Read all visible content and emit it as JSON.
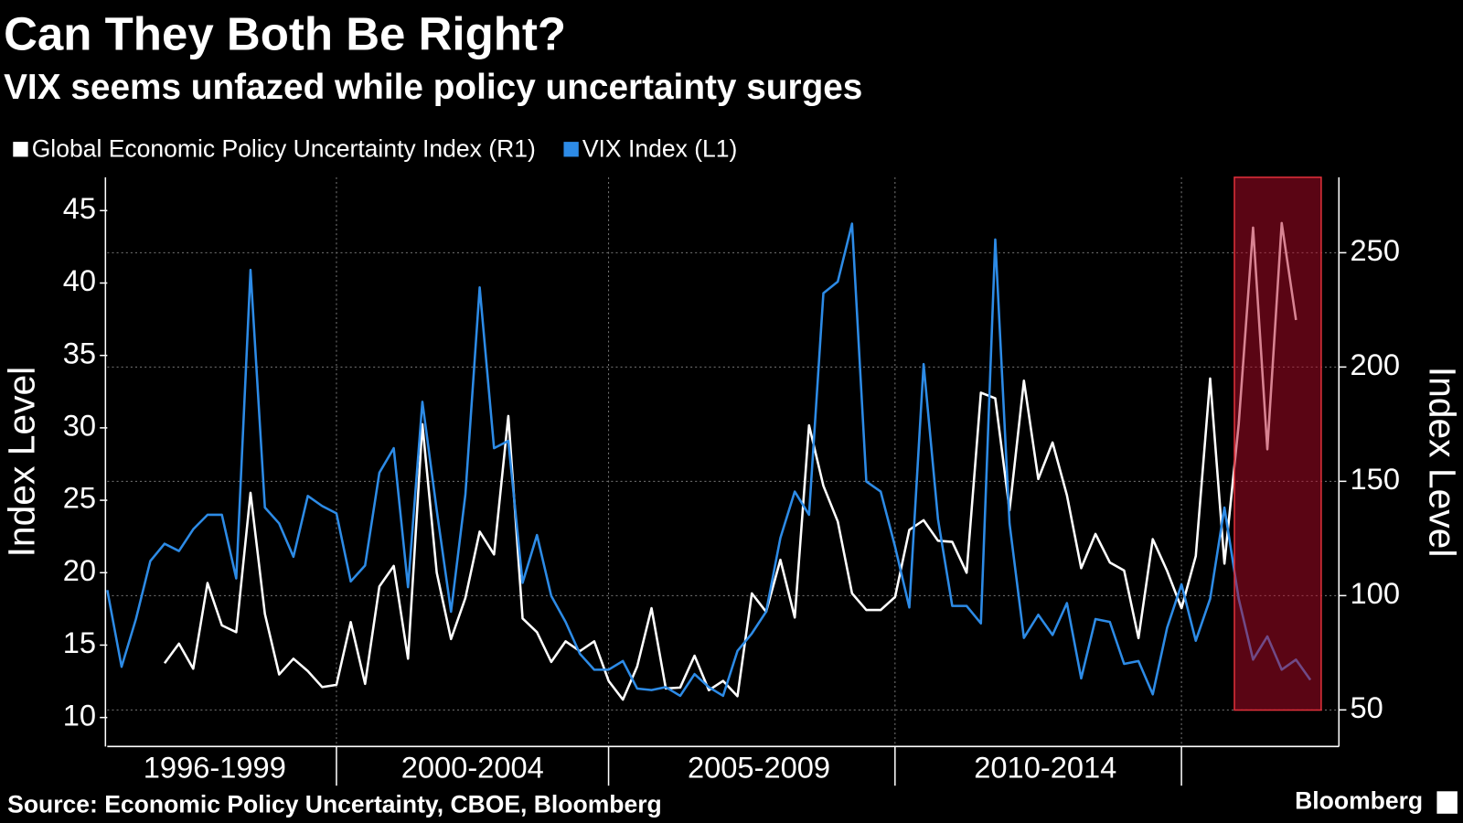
{
  "chart_data": {
    "type": "line",
    "title": "Can They Both Be Right?",
    "subtitle": "VIX seems unfazed while policy uncertainty surges",
    "source": "Source: Economic Policy Uncertainty, CBOE, Bloomberg",
    "brand": "Bloomberg",
    "y_label": "Index Level",
    "y2_label": "Index Level",
    "categories": [
      null,
      null,
      null,
      null,
      null,
      null,
      null,
      "1996-1999",
      null,
      null,
      null,
      null,
      null,
      null,
      null,
      null,
      null,
      null,
      null,
      null,
      null,
      null,
      null,
      null,
      null,
      "2000-2004",
      null,
      null,
      null,
      null,
      null,
      null,
      null,
      null,
      null,
      null,
      null,
      null,
      null,
      null,
      null,
      null,
      null,
      null,
      null,
      "2005-2009",
      null,
      null,
      null,
      null,
      null,
      null,
      null,
      null,
      null,
      null,
      null,
      null,
      null,
      null,
      null,
      null,
      null,
      null,
      null,
      "2010-2014",
      null,
      null,
      null,
      null,
      null,
      null,
      null,
      null,
      null,
      null,
      null,
      null,
      null,
      null,
      null,
      null,
      null,
      null,
      null
    ],
    "ylim": [
      8,
      47.3
    ],
    "yticks": [
      10,
      15,
      20,
      25,
      30,
      35,
      40,
      45
    ],
    "y2lim": [
      34,
      283
    ],
    "y2ticks": [
      50,
      100,
      150,
      200,
      250
    ],
    "grid": true,
    "series": [
      {
        "name": "Global Economic Policy Uncertainty Index (R1)",
        "color": "#ffffff",
        "axis": "y2",
        "values": [
          null,
          null,
          null,
          null,
          70.4,
          79,
          68,
          105.5,
          87,
          84,
          145,
          92,
          65.5,
          72.4,
          67,
          60,
          61,
          88.4,
          61.4,
          104,
          113,
          72.4,
          175,
          110,
          81,
          99,
          128,
          118,
          178.6,
          90,
          84,
          71,
          80,
          75.7,
          80,
          62.7,
          54.5,
          69,
          94.5,
          59.4,
          59.8,
          73.7,
          58.6,
          62.7,
          56,
          101,
          92.9,
          115.7,
          90.4,
          174.5,
          148,
          132.4,
          101,
          93.7,
          93.7,
          99.4,
          128.8,
          133,
          124,
          123.5,
          110,
          188.8,
          186.3,
          137.3,
          194,
          151,
          167,
          143.9,
          112,
          127,
          114.5,
          111,
          81.4,
          124.7,
          110.8,
          94.5,
          117.3,
          195,
          114,
          175,
          261,
          164,
          263,
          220.6,
          null
        ]
      },
      {
        "name": "VIX Index  (L1)",
        "color": "#2d8be6",
        "values": [
          18.8,
          13.5,
          16.8,
          20.8,
          22,
          21.5,
          23,
          24,
          24,
          19.6,
          40.9,
          24.5,
          23.4,
          21.1,
          25.3,
          24.6,
          24.1,
          19.4,
          20.5,
          26.9,
          28.6,
          19,
          31.8,
          24.3,
          17.3,
          25.4,
          39.7,
          28.6,
          29.1,
          19.3,
          22.6,
          18.4,
          16.6,
          14.4,
          13.3,
          13.3,
          13.9,
          12,
          11.9,
          12.1,
          11.5,
          13,
          12.1,
          11.5,
          14.6,
          15.8,
          17.3,
          22.4,
          25.6,
          24,
          39.3,
          40.1,
          44.1,
          26.3,
          25.6,
          21.8,
          17.6,
          34.4,
          23.7,
          17.7,
          17.7,
          16.5,
          43,
          23.4,
          15.5,
          17.1,
          15.7,
          17.9,
          12.7,
          16.8,
          16.6,
          13.7,
          13.9,
          11.6,
          16.2,
          19.2,
          15.3,
          18.2,
          24.5,
          18.2,
          14,
          15.6,
          13.3,
          14,
          12.6
        ]
      }
    ]
  }
}
